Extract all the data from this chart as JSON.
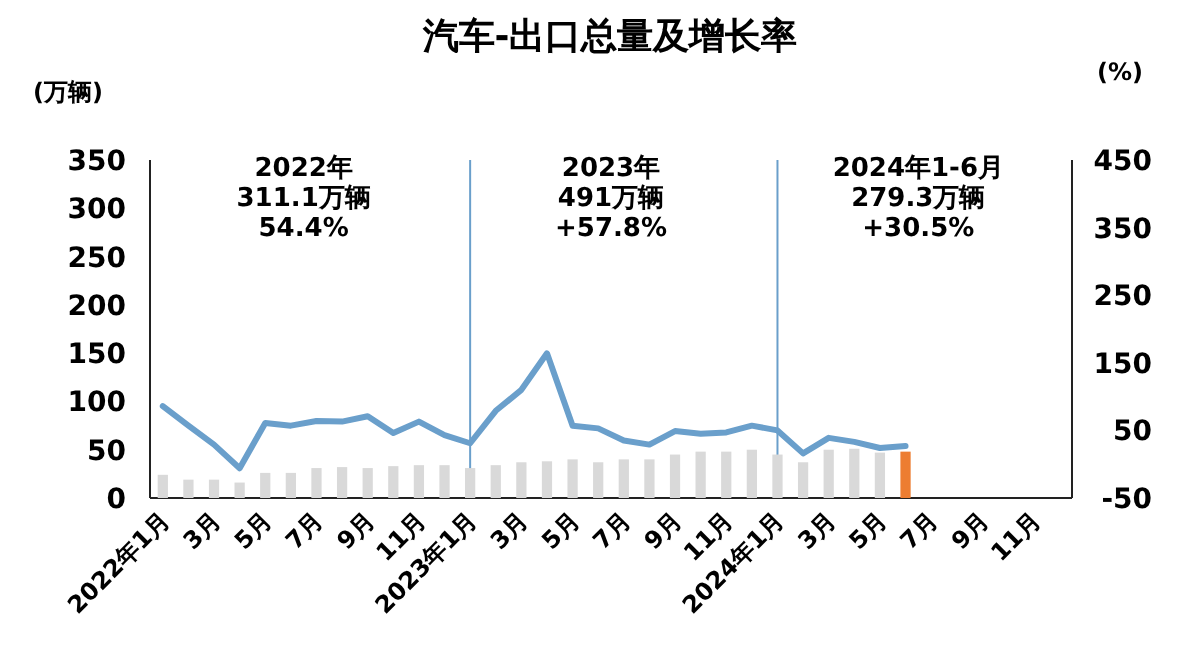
{
  "chart_data": {
    "type": "bar",
    "title": "汽车-出口总量及增长率",
    "ylabel": "(万辆)",
    "y2label": "(%)",
    "categories": [
      "2022年1月",
      null,
      "3月",
      null,
      "5月",
      null,
      "7月",
      null,
      "9月",
      null,
      "11月",
      null,
      "2023年1月",
      null,
      "3月",
      null,
      "5月",
      null,
      "7月",
      null,
      "9月",
      null,
      "11月",
      null,
      "2024年1月",
      null,
      "3月",
      null,
      "5月",
      null,
      "7月",
      null,
      "9月",
      null,
      "11月",
      null
    ],
    "series": [
      {
        "colors": [
          "#d9d9d9",
          "#d9d9d9",
          "#d9d9d9",
          "#d9d9d9",
          "#d9d9d9",
          "#d9d9d9",
          "#d9d9d9",
          "#d9d9d9",
          "#d9d9d9",
          "#d9d9d9",
          "#d9d9d9",
          "#d9d9d9",
          "#d9d9d9",
          "#d9d9d9",
          "#d9d9d9",
          "#d9d9d9",
          "#d9d9d9",
          "#d9d9d9",
          "#d9d9d9",
          "#d9d9d9",
          "#d9d9d9",
          "#d9d9d9",
          "#d9d9d9",
          "#d9d9d9",
          "#d9d9d9",
          "#d9d9d9",
          "#d9d9d9",
          "#d9d9d9",
          "#d9d9d9",
          "#ed7d31",
          null,
          null,
          null,
          null,
          null,
          null
        ],
        "values": [
          24,
          19,
          19,
          16,
          26,
          26,
          31,
          32,
          31,
          33,
          34,
          34,
          31,
          34,
          37,
          38,
          40,
          37,
          40,
          40,
          45,
          48,
          48,
          50,
          45,
          37,
          50,
          51,
          47,
          48,
          null,
          null,
          null,
          null,
          null,
          null
        ]
      },
      {
        "type": "line",
        "axis": "y2",
        "color": "#6a9fcb",
        "values": [
          86,
          57,
          29,
          -6,
          61,
          57,
          64,
          63,
          71,
          46,
          63,
          43,
          31,
          79,
          110,
          164,
          57,
          53,
          35,
          29,
          49,
          45,
          47,
          57,
          50,
          16,
          39,
          33,
          24,
          27,
          null,
          null,
          null,
          null,
          null,
          null
        ]
      }
    ],
    "ylim": [
      0,
      350
    ],
    "yticks": [
      0,
      50,
      100,
      150,
      200,
      250,
      300,
      350
    ],
    "y2lim": [
      -50,
      450
    ],
    "y2ticks": [
      -50,
      50,
      150,
      250,
      350,
      450
    ],
    "ref_lines": [
      {
        "axis": "x",
        "value": "2023年1月",
        "color": "#6a9fcb"
      },
      {
        "axis": "x",
        "value": "2024年1月",
        "color": "#6a9fcb"
      }
    ],
    "annotations": [
      "2022年\n311.1万辆\n54.4%",
      "2023年\n491万辆\n+57.8%",
      "2024年1-6月\n279.3万辆\n+30.5%"
    ],
    "grid": false
  }
}
